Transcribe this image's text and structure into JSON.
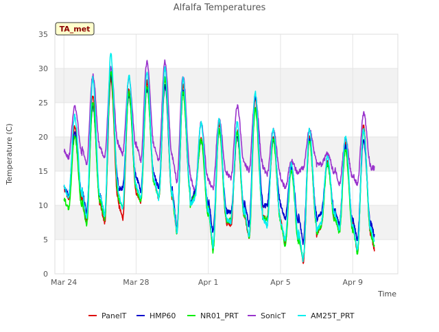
{
  "chart_data": {
    "type": "line",
    "title": "Alfalfa Temperatures",
    "xlabel": "Time",
    "ylabel": "Temperature (C)",
    "badge": "TA_met",
    "xlim": [
      -0.5,
      18.5
    ],
    "ylim": [
      0,
      35
    ],
    "yticks": [
      0,
      5,
      10,
      15,
      20,
      25,
      30,
      35
    ],
    "xticks": [
      {
        "day": 0,
        "label": "Mar 24"
      },
      {
        "day": 4,
        "label": "Mar 28"
      },
      {
        "day": 8,
        "label": "Apr 1"
      },
      {
        "day": 12,
        "label": "Apr 5"
      },
      {
        "day": 16,
        "label": "Apr 9"
      }
    ],
    "grid_bands": true,
    "legend_position": "bottom",
    "series": [
      {
        "name": "PanelT",
        "color": "#dd0000"
      },
      {
        "name": "HMP60",
        "color": "#0000cc"
      },
      {
        "name": "NR01_PRT",
        "color": "#00ee00"
      },
      {
        "name": "SonicT",
        "color": "#9933cc"
      },
      {
        "name": "AM25T_PRT",
        "color": "#00eeee"
      }
    ],
    "daily_extremes": {
      "day": [
        0,
        1,
        2,
        3,
        4,
        5,
        6,
        7,
        8,
        9,
        10,
        11,
        12,
        13,
        14,
        15,
        16,
        17
      ],
      "PanelT_min": [
        11.0,
        7.5,
        7.3,
        8.0,
        10.5,
        11.0,
        6.0,
        11.5,
        3.5,
        7.0,
        5.0,
        8.0,
        4.5,
        1.5,
        7.0,
        7.0,
        3.0,
        3.0
      ],
      "PanelT_max": [
        21.5,
        26.0,
        28.5,
        27.0,
        28.0,
        28.5,
        27.5,
        20.0,
        22.0,
        21.0,
        25.5,
        20.0,
        16.0,
        20.0,
        16.5,
        19.0,
        21.5,
        22.0
      ],
      "HMP60_min": [
        11.5,
        9.0,
        8.5,
        12.5,
        12.0,
        12.5,
        6.5,
        12.0,
        6.0,
        9.0,
        7.0,
        10.0,
        8.0,
        4.5,
        9.0,
        7.0,
        5.0,
        5.0
      ],
      "HMP60_max": [
        20.5,
        24.5,
        29.0,
        26.0,
        27.0,
        27.5,
        26.5,
        19.5,
        21.0,
        20.0,
        26.0,
        19.5,
        15.5,
        19.5,
        16.0,
        18.5,
        19.5,
        22.0
      ],
      "NR01_PRT_min": [
        9.5,
        7.0,
        8.0,
        9.5,
        10.5,
        11.0,
        6.0,
        11.5,
        3.2,
        8.0,
        5.0,
        8.0,
        4.0,
        2.0,
        7.0,
        6.0,
        3.0,
        3.5
      ],
      "NR01_PRT_max": [
        20.0,
        25.0,
        29.5,
        26.5,
        27.5,
        28.5,
        26.5,
        19.5,
        21.0,
        20.5,
        24.0,
        19.5,
        15.0,
        19.5,
        16.0,
        18.0,
        21.0,
        21.5
      ],
      "SonicT_min": [
        17.0,
        16.0,
        17.0,
        17.5,
        16.5,
        16.5,
        13.5,
        12.0,
        12.5,
        14.0,
        15.0,
        14.5,
        12.5,
        15.5,
        16.0,
        13.0,
        13.0,
        15.5
      ],
      "SonicT_max": [
        24.5,
        29.0,
        30.0,
        28.5,
        31.0,
        31.0,
        29.0,
        22.0,
        22.5,
        24.5,
        26.0,
        21.0,
        16.5,
        21.0,
        17.5,
        19.5,
        23.5,
        23.5
      ],
      "AM25T_PRT_min": [
        11.0,
        8.0,
        8.5,
        9.5,
        11.0,
        11.0,
        6.0,
        11.0,
        4.0,
        7.5,
        5.5,
        7.0,
        5.0,
        2.0,
        7.5,
        6.5,
        3.5,
        4.0
      ],
      "AM25T_PRT_max": [
        23.0,
        28.5,
        32.0,
        29.0,
        29.5,
        30.0,
        28.5,
        22.0,
        22.5,
        22.0,
        26.5,
        21.0,
        16.0,
        21.0,
        17.0,
        20.0,
        21.0,
        24.0
      ]
    }
  }
}
